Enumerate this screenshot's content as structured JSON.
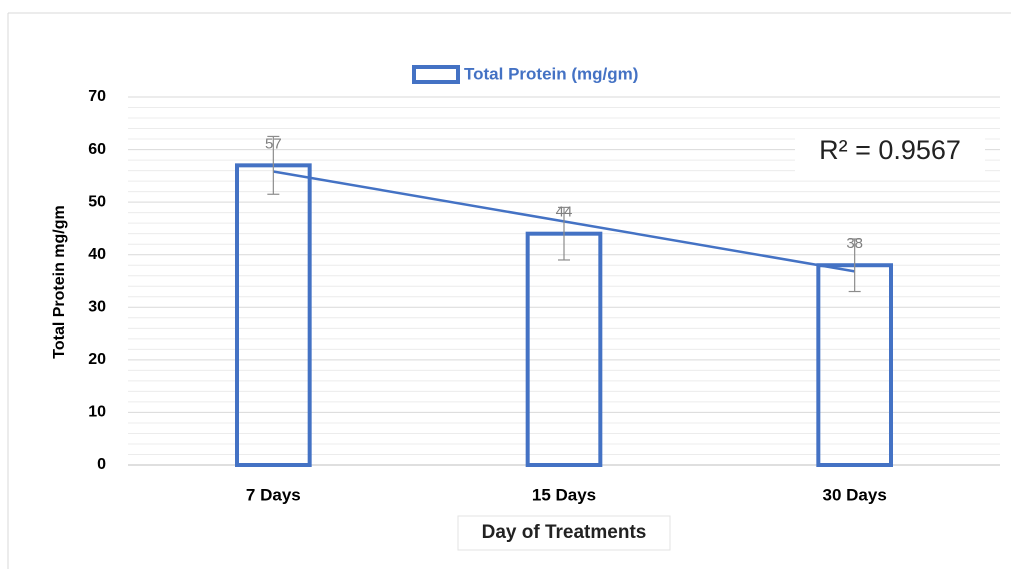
{
  "chart_data": {
    "type": "bar",
    "legend": "Total Protein (mg/gm)",
    "y_label": "Total Protein mg/gm",
    "x_label": "Day of Treatments",
    "categories": [
      "7 Days",
      "15 Days",
      "30 Days"
    ],
    "values": [
      57,
      44,
      38
    ],
    "errors": [
      5.5,
      5,
      5
    ],
    "color": "#4472c4",
    "ylim": [
      0,
      70
    ],
    "yticks": [
      0,
      10,
      20,
      30,
      40,
      50,
      60,
      70
    ],
    "grid": true,
    "minor_grid": true,
    "trendline": "linear",
    "annotation": "R² = 0.9567",
    "legend_position": "top"
  }
}
